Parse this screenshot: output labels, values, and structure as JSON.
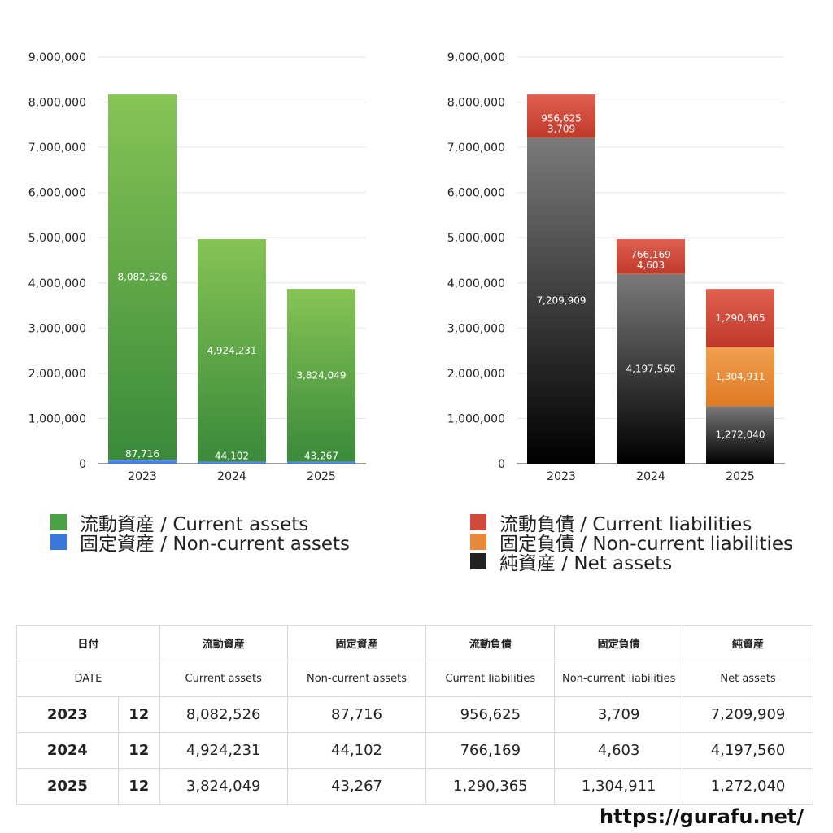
{
  "chart_data": [
    {
      "type": "bar",
      "stacked": true,
      "categories": [
        "2023",
        "2024",
        "2025"
      ],
      "ylim": [
        0,
        9000000
      ],
      "yticks": [
        "0",
        "1,000,000",
        "2,000,000",
        "3,000,000",
        "4,000,000",
        "5,000,000",
        "6,000,000",
        "7,000,000",
        "8,000,000",
        "9,000,000"
      ],
      "grid": true,
      "series": [
        {
          "name": "固定資産 / Non-current assets",
          "values": [
            87716,
            44102,
            43267
          ],
          "labels": [
            "87,716",
            "44,102",
            "43,267"
          ],
          "color": "#3a78d8",
          "color_top": "#5a98f0"
        },
        {
          "name": "流動資産 / Current assets",
          "values": [
            8082526,
            4924231,
            3824049
          ],
          "labels": [
            "8,082,526",
            "4,924,231",
            "3,824,049"
          ],
          "color": "#3a8a3a",
          "color_top": "#86c455"
        }
      ]
    },
    {
      "type": "bar",
      "stacked": true,
      "categories": [
        "2023",
        "2024",
        "2025"
      ],
      "ylim": [
        0,
        9000000
      ],
      "yticks": [
        "0",
        "1,000,000",
        "2,000,000",
        "3,000,000",
        "4,000,000",
        "5,000,000",
        "6,000,000",
        "7,000,000",
        "8,000,000",
        "9,000,000"
      ],
      "grid": true,
      "series": [
        {
          "name": "純資産 / Net assets",
          "values": [
            7209909,
            4197560,
            1272040
          ],
          "labels": [
            "7,209,909",
            "4,197,560",
            "1,272,040"
          ],
          "color": "#000000",
          "color_top": "#7a7a7a"
        },
        {
          "name": "固定負債 / Non-current liabilities",
          "values": [
            3709,
            4603,
            1304911
          ],
          "labels": [
            "3,709",
            "4,603",
            "1,304,911"
          ],
          "color": "#e07a24",
          "color_top": "#f0a050"
        },
        {
          "name": "流動負債 / Current liabilities",
          "values": [
            956625,
            766169,
            1290365
          ],
          "labels": [
            "956,625",
            "766,169",
            "1,290,365"
          ],
          "color": "#c0392b",
          "color_top": "#e06050"
        }
      ]
    }
  ],
  "legend_left": [
    {
      "label": "流動資産 / Current assets",
      "color": "#4aa042"
    },
    {
      "label": "固定資産 / Non-current assets",
      "color": "#3a78d8"
    }
  ],
  "legend_right": [
    {
      "label": "流動負債 / Current liabilities",
      "color": "#d04a3a"
    },
    {
      "label": "固定負債 / Non-current liabilities",
      "color": "#e8883a"
    },
    {
      "label": "純資産 / Net assets",
      "color": "#222222"
    }
  ],
  "table": {
    "header_jp": [
      "日付",
      "流動資産",
      "固定資産",
      "流動負債",
      "固定負債",
      "純資産"
    ],
    "header_en": [
      "DATE",
      "Current assets",
      "Non-current assets",
      "Current liabilities",
      "Non-current liabilities",
      "Net assets"
    ],
    "rows": [
      {
        "year": "2023",
        "month": "12",
        "values": [
          "8,082,526",
          "87,716",
          "956,625",
          "3,709",
          "7,209,909"
        ]
      },
      {
        "year": "2024",
        "month": "12",
        "values": [
          "4,924,231",
          "44,102",
          "766,169",
          "4,603",
          "4,197,560"
        ]
      },
      {
        "year": "2025",
        "month": "12",
        "values": [
          "3,824,049",
          "43,267",
          "1,290,365",
          "1,304,911",
          "1,272,040"
        ]
      }
    ]
  },
  "site": "https://gurafu.net/"
}
